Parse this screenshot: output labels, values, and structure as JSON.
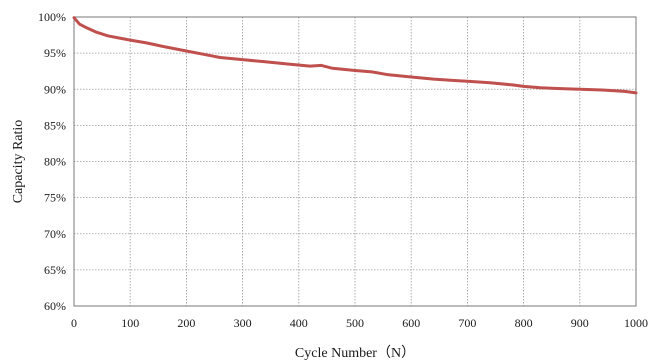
{
  "chart_data": {
    "type": "line",
    "title": "",
    "xlabel": "Cycle Number（N）",
    "ylabel": "Capacity Ratio",
    "xlim": [
      0,
      1000
    ],
    "ylim": [
      60,
      100
    ],
    "x_ticks": [
      0,
      100,
      200,
      300,
      400,
      500,
      600,
      700,
      800,
      900,
      1000
    ],
    "x_tick_labels": [
      "0",
      "100",
      "200",
      "300",
      "400",
      "500",
      "600",
      "700",
      "800",
      "900",
      "1000"
    ],
    "y_ticks": [
      60,
      65,
      70,
      75,
      80,
      85,
      90,
      95,
      100
    ],
    "y_tick_labels": [
      "60%",
      "65%",
      "70%",
      "75%",
      "80%",
      "85%",
      "90%",
      "95%",
      "100%"
    ],
    "grid": true,
    "legend": "none",
    "line_color": "#c0504d",
    "series": [
      {
        "x": [
          0,
          10,
          20,
          40,
          60,
          80,
          100,
          130,
          160,
          200,
          240,
          260,
          300,
          340,
          380,
          420,
          440,
          460,
          500,
          530,
          560,
          600,
          640,
          680,
          700,
          740,
          780,
          800,
          830,
          860,
          900,
          940,
          980,
          1000
        ],
        "values": [
          99.9,
          99.0,
          98.6,
          97.9,
          97.4,
          97.1,
          96.8,
          96.4,
          95.9,
          95.3,
          94.7,
          94.4,
          94.1,
          93.8,
          93.5,
          93.2,
          93.3,
          92.9,
          92.6,
          92.4,
          92.0,
          91.7,
          91.4,
          91.2,
          91.1,
          90.9,
          90.6,
          90.4,
          90.2,
          90.1,
          90.0,
          89.9,
          89.7,
          89.5
        ]
      }
    ]
  }
}
